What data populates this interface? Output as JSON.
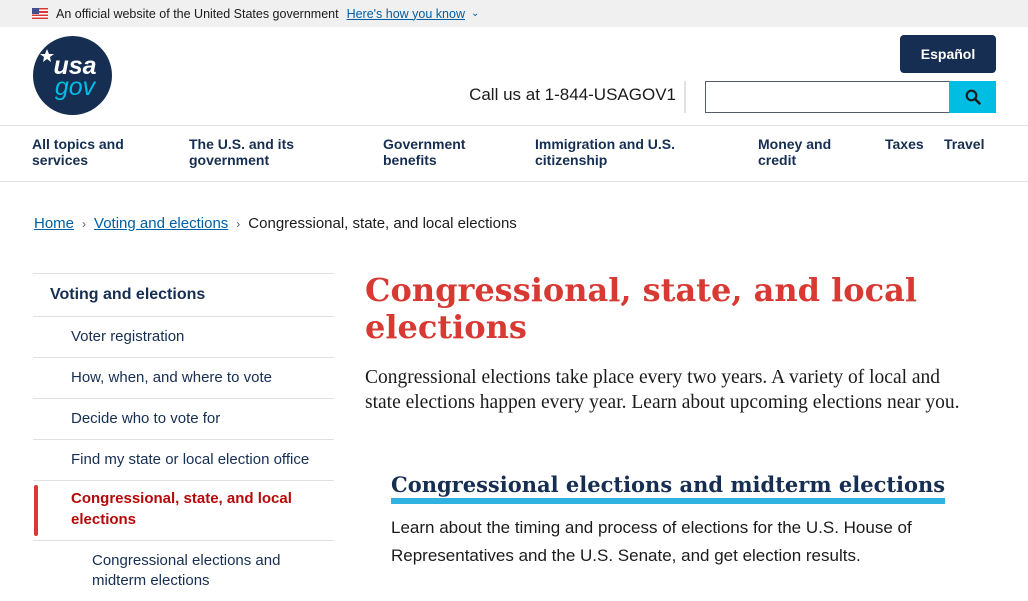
{
  "banner": {
    "text": "An official website of the United States government",
    "link": "Here's how you know"
  },
  "header": {
    "logo_top": "usa",
    "logo_bottom": "gov",
    "espanol": "Español",
    "call": "Call us at 1-844-USAGOV1",
    "search_placeholder": ""
  },
  "nav": [
    "All topics and services",
    "The U.S. and its government",
    "Government benefits",
    "Immigration and U.S. citizenship",
    "Money and credit",
    "Taxes",
    "Travel"
  ],
  "breadcrumb": {
    "home": "Home",
    "section": "Voting and elections",
    "current": "Congressional, state, and local elections"
  },
  "sidebar": {
    "top": "Voting and elections",
    "items": [
      "Voter registration",
      "How, when, and where to vote",
      "Decide who to vote for",
      "Find my state or local election office"
    ],
    "current": "Congressional, state, and local elections",
    "sub": "Congressional elections and midterm elections"
  },
  "main": {
    "title": "Congressional, state, and local elections",
    "lead": "Congressional elections take place every two years. A variety of local and state elections happen every year. Learn about upcoming elections near you.",
    "section_title": "Congressional elections and midterm elections",
    "section_desc": "Learn about the timing and process of elections for the U.S. House of Representatives and the U.S. Senate, and get election results."
  },
  "colors": {
    "navy": "#162e51",
    "red": "#d83933",
    "cyan": "#00bde3",
    "link": "#005ea2"
  }
}
